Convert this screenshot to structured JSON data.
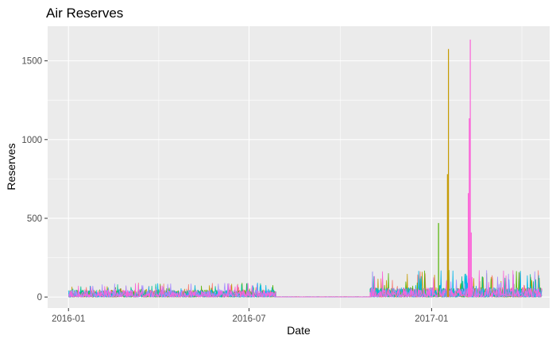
{
  "chart_data": {
    "type": "line",
    "title": "Air Reserves",
    "xlabel": "Date",
    "ylabel": "Reserves",
    "x_axis": {
      "scale": "date",
      "range": [
        "2015-12-11",
        "2017-04-30"
      ],
      "ticks": [
        {
          "value": "2016-01-01",
          "label": "2016-01"
        },
        {
          "value": "2016-07-01",
          "label": "2016-07"
        },
        {
          "value": "2017-01-01",
          "label": "2017-01"
        }
      ]
    },
    "y_axis": {
      "range": [
        -70,
        1720
      ],
      "ticks": [
        0,
        500,
        1000,
        1500
      ]
    },
    "grid": true,
    "legend": "none",
    "background": "#EBEBEB",
    "gridline_color": "#FFFFFF",
    "series_colors": [
      "#F8766D",
      "#C49A00",
      "#53B400",
      "#00C094",
      "#00B6EB",
      "#A58AFF",
      "#FB61D7"
    ],
    "data_periods": [
      {
        "start": "2016-01-01",
        "end": "2016-07-28",
        "typical_high": 45,
        "max_spike": 90
      },
      {
        "start": "2016-07-28",
        "end": "2016-10-31",
        "typical_high": 2,
        "max_spike": 3
      },
      {
        "start": "2016-10-31",
        "end": "2017-04-22",
        "typical_high": 60,
        "max_spike": 170
      }
    ],
    "spikes": [
      {
        "date": "2017-01-08",
        "series": 2,
        "value": 470
      },
      {
        "date": "2017-01-18",
        "series": 1,
        "value": 1575
      },
      {
        "date": "2017-01-17",
        "series": 1,
        "value": 780
      },
      {
        "date": "2017-02-09",
        "series": 6,
        "value": 1635
      },
      {
        "date": "2017-02-08",
        "series": 6,
        "value": 1135
      },
      {
        "date": "2017-02-07",
        "series": 6,
        "value": 660
      },
      {
        "date": "2017-02-10",
        "series": 6,
        "value": 410
      }
    ]
  }
}
